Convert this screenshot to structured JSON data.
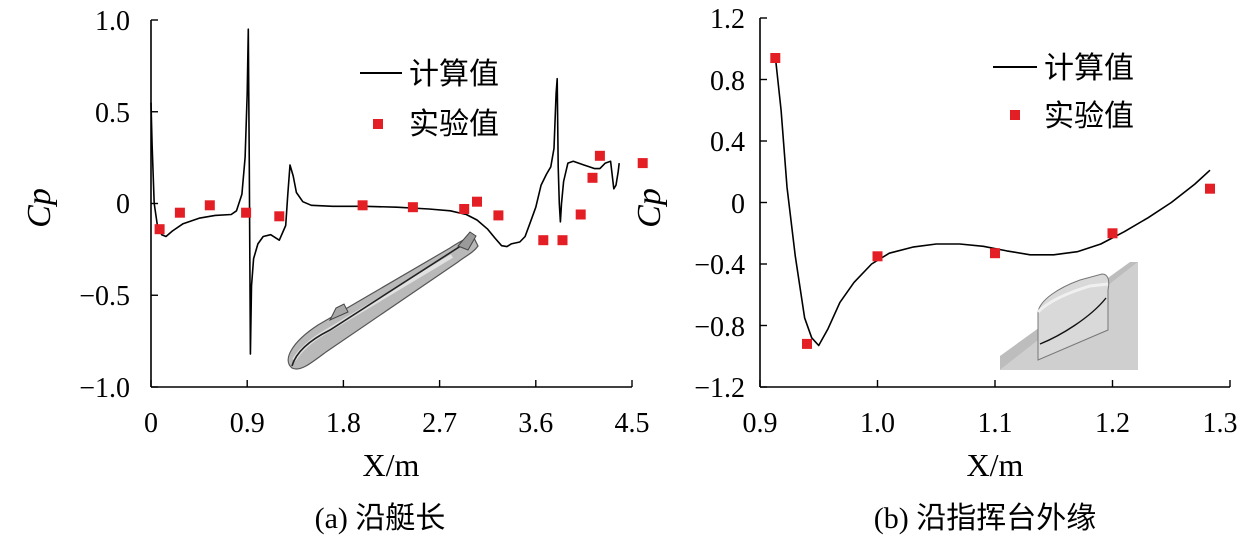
{
  "chart_data": [
    {
      "type": "line",
      "caption": "(a) 沿艇长",
      "xlabel": "X/m",
      "ylabel": "Cp",
      "xlim": [
        0,
        4.5
      ],
      "ylim": [
        -1.0,
        1.0
      ],
      "x_ticks": [
        "0",
        "0.9",
        "1.8",
        "2.7",
        "3.6",
        "4.5"
      ],
      "y_ticks": [
        "1.0",
        "0.5",
        "0",
        "−0.5",
        "−1.0"
      ],
      "legend_position": "top-right",
      "series": [
        {
          "name": "计算值",
          "style": "line",
          "color": "#000000",
          "x": [
            0,
            0.01,
            0.03,
            0.06,
            0.1,
            0.14,
            0.2,
            0.3,
            0.45,
            0.6,
            0.75,
            0.8,
            0.85,
            0.88,
            0.9,
            0.91,
            0.92,
            0.93,
            0.94,
            0.96,
            1.0,
            1.05,
            1.12,
            1.2,
            1.26,
            1.28,
            1.3,
            1.33,
            1.36,
            1.42,
            1.5,
            1.7,
            2.0,
            2.3,
            2.6,
            2.8,
            2.95,
            3.05,
            3.15,
            3.22,
            3.28,
            3.33,
            3.37,
            3.45,
            3.5,
            3.55,
            3.6,
            3.65,
            3.7,
            3.74,
            3.77,
            3.79,
            3.8,
            3.81,
            3.82,
            3.83,
            3.84,
            3.86,
            3.9,
            3.95,
            4.0,
            4.05,
            4.1,
            4.15,
            4.2,
            4.25,
            4.3,
            4.33,
            4.35,
            4.37,
            4.38
          ],
          "y": [
            0.55,
            0.32,
            0.0,
            -0.12,
            -0.17,
            -0.18,
            -0.15,
            -0.11,
            -0.08,
            -0.065,
            -0.06,
            -0.04,
            0.05,
            0.25,
            0.6,
            0.95,
            0.2,
            -0.82,
            -0.45,
            -0.3,
            -0.22,
            -0.18,
            -0.17,
            -0.2,
            -0.12,
            0.05,
            0.21,
            0.15,
            0.06,
            0.01,
            -0.01,
            -0.015,
            -0.015,
            -0.02,
            -0.03,
            -0.04,
            -0.06,
            -0.09,
            -0.14,
            -0.19,
            -0.23,
            -0.235,
            -0.22,
            -0.21,
            -0.18,
            -0.1,
            -0.02,
            0.1,
            0.16,
            0.2,
            0.3,
            0.6,
            0.68,
            0.2,
            0.0,
            -0.1,
            0.0,
            0.12,
            0.22,
            0.23,
            0.22,
            0.21,
            0.2,
            0.19,
            0.19,
            0.22,
            0.23,
            0.08,
            0.1,
            0.17,
            0.22
          ]
        },
        {
          "name": "实验值",
          "style": "marker",
          "color": "#e31e24",
          "x": [
            0.08,
            0.27,
            0.55,
            0.89,
            1.2,
            1.98,
            2.45,
            2.93,
            3.05,
            3.25,
            3.67,
            3.85,
            4.02,
            4.13,
            4.2,
            4.6
          ],
          "y": [
            -0.14,
            -0.05,
            -0.01,
            -0.05,
            -0.07,
            -0.01,
            -0.02,
            -0.03,
            0.01,
            -0.065,
            -0.2,
            -0.2,
            -0.06,
            0.14,
            0.26,
            0.22
          ]
        }
      ]
    },
    {
      "type": "line",
      "caption": "(b) 沿指挥台外缘",
      "xlabel": "X/m",
      "ylabel": "Cp",
      "xlim": [
        0.9,
        1.3
      ],
      "ylim": [
        -1.2,
        1.2
      ],
      "x_ticks": [
        "0.9",
        "1.0",
        "1.1",
        "1.2",
        "1.3"
      ],
      "y_ticks": [
        "1.2",
        "0.8",
        "0.4",
        "0",
        "−0.4",
        "−0.8",
        "−1.2"
      ],
      "legend_position": "top-right",
      "series": [
        {
          "name": "计算值",
          "style": "line",
          "color": "#000000",
          "x": [
            0.913,
            0.918,
            0.923,
            0.93,
            0.938,
            0.944,
            0.95,
            0.958,
            0.968,
            0.98,
            0.995,
            1.01,
            1.03,
            1.05,
            1.07,
            1.09,
            1.11,
            1.13,
            1.15,
            1.17,
            1.19,
            1.21,
            1.23,
            1.25,
            1.27,
            1.283
          ],
          "y": [
            0.95,
            0.6,
            0.1,
            -0.35,
            -0.75,
            -0.88,
            -0.93,
            -0.82,
            -0.65,
            -0.52,
            -0.4,
            -0.33,
            -0.29,
            -0.27,
            -0.27,
            -0.285,
            -0.315,
            -0.34,
            -0.34,
            -0.32,
            -0.27,
            -0.19,
            -0.1,
            0.0,
            0.12,
            0.21
          ]
        },
        {
          "name": "实验值",
          "style": "marker",
          "color": "#e31e24",
          "x": [
            0.913,
            0.94,
            1.0,
            1.1,
            1.2,
            1.283
          ],
          "y": [
            0.94,
            -0.92,
            -0.35,
            -0.33,
            -0.2,
            0.09
          ]
        }
      ]
    }
  ]
}
